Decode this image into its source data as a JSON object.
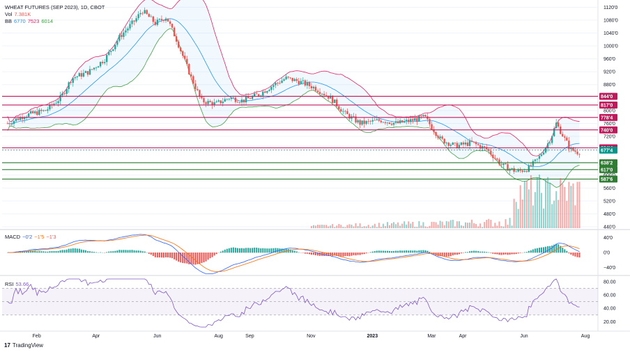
{
  "header": {
    "symbol": "WHEAT FUTURES (SEP 2023), 1D, CBOT",
    "vol_label": "Vol",
    "vol_value": "7.381K",
    "bb_label": "BB",
    "bb_mid": "6770",
    "bb_upper": "7523",
    "bb_lower": "6014"
  },
  "macd": {
    "label": "MACD",
    "macd": "−0'2",
    "signal": "−1'5",
    "hist": "−1'3"
  },
  "rsi": {
    "label": "RSI",
    "value": "53.66"
  },
  "brand": {
    "logo": "17",
    "name": "TradingView"
  },
  "colors": {
    "up": "#26a69a",
    "down": "#ef5350",
    "resistance": "#c2185b",
    "support": "#2e7d32",
    "bb_basis": "#2196f3",
    "bb_upper": "#e91e63",
    "bb_lower": "#43a047",
    "macd_line": "#2962ff",
    "signal_line": "#ff6d00",
    "rsi_line": "#7e57c2",
    "last_price": "#009688"
  },
  "chart_data": [
    {
      "type": "candlestick",
      "title": "WHEAT FUTURES (SEP 2023), 1D, CBOT",
      "y_tick_labels": [
        "1120'0",
        "1080'0",
        "1040'0",
        "1000'0",
        "960'0",
        "920'0",
        "880'0",
        "800'0",
        "760'0",
        "720'0",
        "680'0",
        "6400",
        "600'0",
        "560'0",
        "520'0",
        "480'0",
        "440'0"
      ],
      "x_tick_labels": [
        "Feb",
        "Apr",
        "Jun",
        "Aug",
        "Sep",
        "Nov",
        "2023",
        "Mar",
        "Apr",
        "Jun",
        "Aug"
      ],
      "ylim": [
        4400,
        11250
      ],
      "horizontal_levels": [
        {
          "label": "844'0",
          "value": 844.0,
          "kind": "resistance"
        },
        {
          "label": "817'0",
          "value": 817.0,
          "kind": "resistance"
        },
        {
          "label": "778'4",
          "value": 778.5,
          "kind": "resistance"
        },
        {
          "label": "740'0",
          "value": 740.0,
          "kind": "resistance"
        },
        {
          "label": "684'4",
          "value": 684.5,
          "kind": "resistance"
        },
        {
          "label": "677'4",
          "value": 677.5,
          "kind": "last"
        },
        {
          "label": "638'2",
          "value": 638.25,
          "kind": "support"
        },
        {
          "label": "617'0",
          "value": 617.0,
          "kind": "support"
        },
        {
          "label": "587'6",
          "value": 587.75,
          "kind": "support"
        }
      ],
      "close_path": [
        [
          "2022-01-03",
          760
        ],
        [
          "2022-01-20",
          785
        ],
        [
          "2022-02-10",
          800
        ],
        [
          "2022-02-25",
          840
        ],
        [
          "2022-03-08",
          900
        ],
        [
          "2022-03-25",
          920
        ],
        [
          "2022-04-10",
          960
        ],
        [
          "2022-04-25",
          1030
        ],
        [
          "2022-05-10",
          1080
        ],
        [
          "2022-05-17",
          1110
        ],
        [
          "2022-05-30",
          1070
        ],
        [
          "2022-06-10",
          1090
        ],
        [
          "2022-06-20",
          1020
        ],
        [
          "2022-07-05",
          900
        ],
        [
          "2022-07-15",
          830
        ],
        [
          "2022-07-29",
          820
        ],
        [
          "2022-08-12",
          840
        ],
        [
          "2022-08-25",
          830
        ],
        [
          "2022-09-10",
          850
        ],
        [
          "2022-09-25",
          880
        ],
        [
          "2022-10-07",
          900
        ],
        [
          "2022-10-20",
          890
        ],
        [
          "2022-11-05",
          870
        ],
        [
          "2022-11-20",
          840
        ],
        [
          "2022-12-05",
          790
        ],
        [
          "2022-12-20",
          760
        ],
        [
          "2023-01-10",
          770
        ],
        [
          "2023-01-25",
          760
        ],
        [
          "2023-02-10",
          770
        ],
        [
          "2023-02-22",
          780
        ],
        [
          "2023-03-10",
          710
        ],
        [
          "2023-03-25",
          690
        ],
        [
          "2023-04-10",
          700
        ],
        [
          "2023-04-25",
          680
        ],
        [
          "2023-05-10",
          630
        ],
        [
          "2023-05-25",
          610
        ],
        [
          "2023-06-05",
          620
        ],
        [
          "2023-06-15",
          650
        ],
        [
          "2023-06-27",
          710
        ],
        [
          "2023-07-03",
          760
        ],
        [
          "2023-07-10",
          720
        ],
        [
          "2023-07-17",
          680
        ],
        [
          "2023-07-25",
          670
        ],
        [
          "2023-07-28",
          677.5
        ]
      ]
    },
    {
      "type": "bar",
      "name": "volume",
      "y_tick_labels": [
        "6K",
        "4K",
        "2K",
        "0"
      ]
    },
    {
      "type": "line",
      "name": "MACD",
      "y_tick_labels": [
        "40'0",
        "0'0",
        "−40'0"
      ],
      "ylim": [
        -50,
        50
      ]
    },
    {
      "type": "line",
      "name": "RSI",
      "y_tick_labels": [
        "80.00",
        "60.00",
        "40.00",
        "20.00"
      ],
      "ylim": [
        10,
        85
      ],
      "band": [
        30,
        70
      ]
    }
  ]
}
